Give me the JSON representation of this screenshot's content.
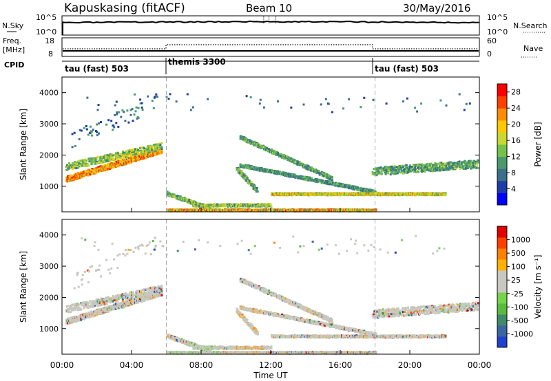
{
  "header": {
    "station": "Kapuskasing (fitACF)",
    "beam": "Beam 10",
    "date": "30/May/2016"
  },
  "top_panels": {
    "nsky_label": "N.Sky",
    "nsky_ticks": [
      "10^5",
      "10^0"
    ],
    "nsearch_label": "N.Search",
    "nsearch_ticks": [
      "10^5",
      "10^0"
    ],
    "freq_label": "Freq.",
    "freq_unit": "[MHz]",
    "freq_ticks": [
      "18",
      "8"
    ],
    "nave_label": "Nave",
    "nave_ticks": [
      "60",
      "0"
    ],
    "cpid_label": "CPID",
    "cpid_segments": [
      {
        "label": "tau (fast) 503",
        "start_hour": 0,
        "end_hour": 6
      },
      {
        "label": "themis 3300",
        "start_hour": 6,
        "end_hour": 18
      },
      {
        "label": "tau (fast) 503",
        "start_hour": 18,
        "end_hour": 24
      }
    ]
  },
  "colors": {
    "power_scale": [
      "#0000ff",
      "#1e3ca8",
      "#3a6f8a",
      "#4a9a6e",
      "#74c24a",
      "#c8d830",
      "#ffc800",
      "#ff8c00",
      "#ff4000",
      "#ff0000"
    ],
    "velocity_scale": [
      "#2040d0",
      "#3c64a0",
      "#3f8a6a",
      "#5aba3c",
      "#74d44a",
      "#c8c8c0",
      "#c8c8c0",
      "#ffb000",
      "#ff8000",
      "#ff4000",
      "#e00000"
    ]
  },
  "chart_data": [
    {
      "type": "heatmap",
      "name": "power-panel",
      "ylabel": "Slant Range [km]",
      "yticks": [
        "1000",
        "2000",
        "3000",
        "4000"
      ],
      "ylim": [
        180,
        4500
      ],
      "xlim": [
        0,
        24
      ],
      "colorbar_label": "Power [dB]",
      "colorbar_ticks": [
        "4",
        "8",
        "12",
        "16",
        "20",
        "24",
        "28"
      ],
      "colorbar_range": [
        0,
        30
      ]
    },
    {
      "type": "heatmap",
      "name": "velocity-panel",
      "xlabel": "Time UT",
      "xticks": [
        "00:00",
        "04:00",
        "08:00",
        "12:00",
        "16:00",
        "20:00",
        "00:00"
      ],
      "ylabel": "Slant Range [km]",
      "yticks": [
        "1000",
        "2000",
        "3000",
        "4000"
      ],
      "ylim": [
        180,
        4500
      ],
      "xlim": [
        0,
        24
      ],
      "colorbar_label": "Velocity [m s⁻¹]",
      "colorbar_ticks": [
        "1000",
        "500",
        "100",
        "25",
        "-25",
        "-100",
        "-500",
        "-1000"
      ]
    }
  ]
}
